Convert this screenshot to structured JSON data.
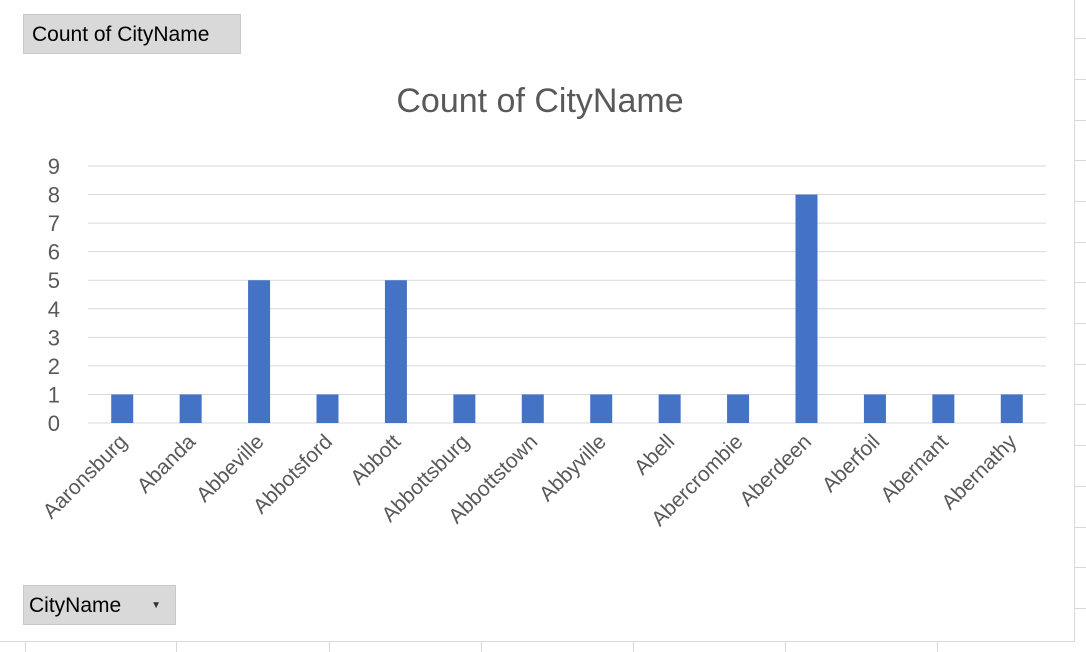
{
  "pivot": {
    "value_field_label": "Count of CityName",
    "axis_field_label": "CityName",
    "dropdown_icon": "chevron-down-icon"
  },
  "chart_data": {
    "type": "bar",
    "title": "Count of CityName",
    "xlabel": "",
    "ylabel": "",
    "categories": [
      "Aaronsburg",
      "Abanda",
      "Abbeville",
      "Abbotsford",
      "Abbott",
      "Abbottsburg",
      "Abbottstown",
      "Abbyville",
      "Abell",
      "Abercrombie",
      "Aberdeen",
      "Aberfoil",
      "Abernant",
      "Abernathy"
    ],
    "series": [
      {
        "values": [
          1,
          1,
          5,
          1,
          5,
          1,
          1,
          1,
          1,
          1,
          8,
          1,
          1,
          1
        ],
        "color": "#4472c4"
      }
    ],
    "ylim": [
      0,
      9
    ],
    "yticks": [
      0,
      1,
      2,
      3,
      4,
      5,
      6,
      7,
      8,
      9
    ],
    "grid": true,
    "legend": "none",
    "gridline_color": "#d9d9d9",
    "tick_label_color": "#595959"
  }
}
